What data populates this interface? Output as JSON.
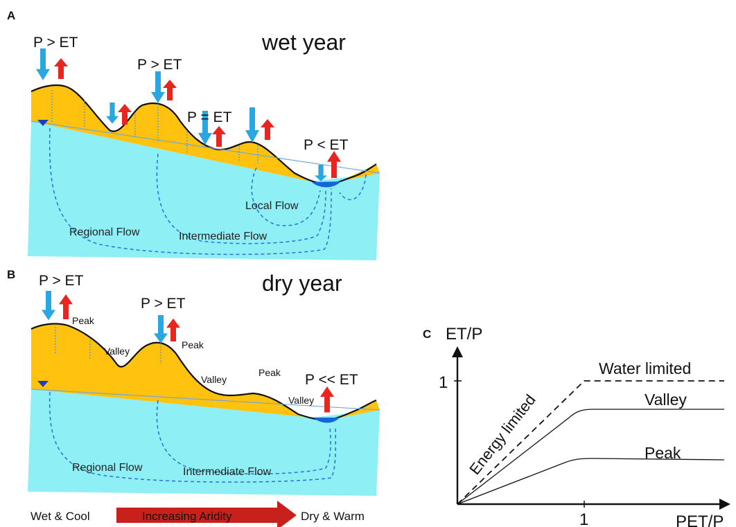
{
  "panel_a": {
    "letter": "A",
    "title": "wet year",
    "labels": {
      "p1": "P > ET",
      "p2": "P > ET",
      "p3": "P = ET",
      "p4": "P < ET"
    },
    "flows": {
      "regional": "Regional Flow",
      "intermediate": "Intermediate Flow",
      "local": "Local Flow"
    }
  },
  "panel_b": {
    "letter": "B",
    "title": "dry year",
    "labels": {
      "p1": "P > ET",
      "p2": "P > ET",
      "p3": "P << ET"
    },
    "terrain": {
      "peak1": "Peak",
      "valley1": "Valley",
      "peak2": "Peak",
      "valley2": "Valley",
      "peak3": "Peak",
      "valley3": "Valley"
    },
    "flows": {
      "regional": "Regional Flow",
      "intermediate": "Intermediate Flow"
    }
  },
  "aridity_bar": {
    "left": "Wet & Cool",
    "middle": "Increasing Aridity",
    "right": "Dry & Warm"
  },
  "panel_c": {
    "letter": "C",
    "y_axis_label": "ET/P",
    "x_axis_label": "PET/P",
    "y_tick": "1",
    "x_tick": "1",
    "water_limited": "Water limited",
    "energy_limited": "Energy limited",
    "valley": "Valley",
    "peak": "Peak"
  },
  "colors": {
    "soil": "#FFC20E",
    "groundwater": "#8EEFF5",
    "precip_arrow": "#2AA7E0",
    "et_arrow": "#E8251E",
    "flow_line": "#2D6FD6",
    "pond": "#1565D8",
    "aridity_arrow": "#C8211C"
  }
}
